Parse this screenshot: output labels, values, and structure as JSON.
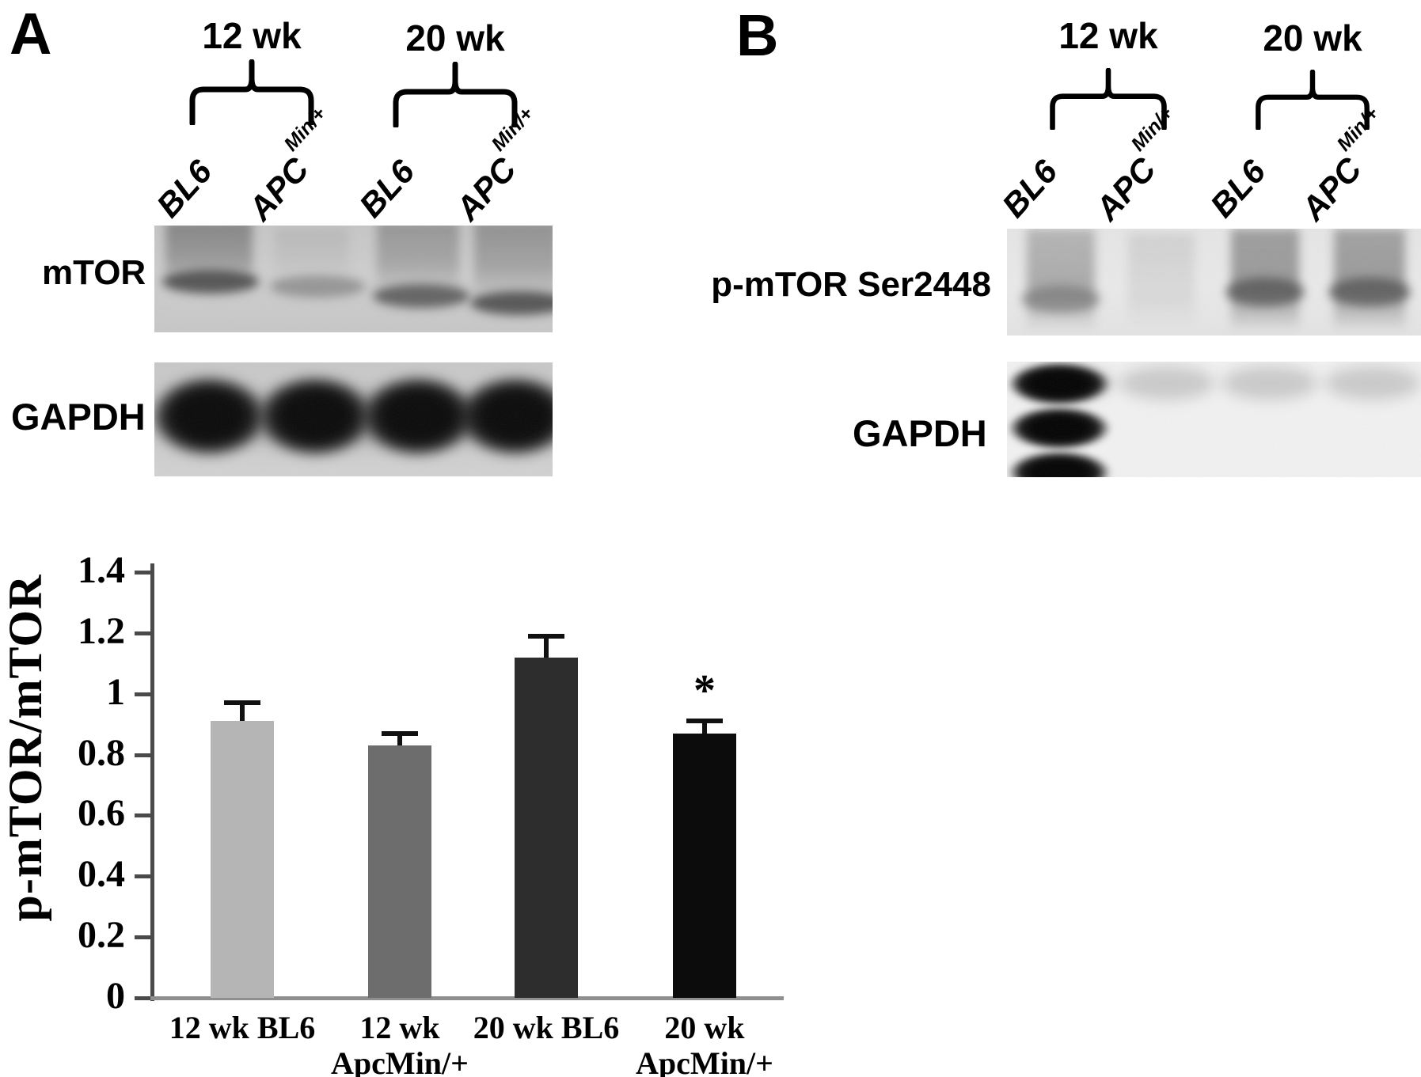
{
  "panel_a": {
    "label": "A",
    "group_labels": [
      "12 wk",
      "20 wk"
    ],
    "lanes": [
      {
        "base": "BL6",
        "sup": ""
      },
      {
        "base": "APC",
        "sup": "Min/+"
      },
      {
        "base": "BL6",
        "sup": ""
      },
      {
        "base": "APC",
        "sup": "Min/+"
      }
    ],
    "rows": [
      {
        "label": "mTOR"
      },
      {
        "label": "GAPDH"
      }
    ]
  },
  "panel_b": {
    "label": "B",
    "group_labels": [
      "12 wk",
      "20 wk"
    ],
    "lanes": [
      {
        "base": "BL6",
        "sup": ""
      },
      {
        "base": "APC",
        "sup": "Min/+"
      },
      {
        "base": "BL6",
        "sup": ""
      },
      {
        "base": "APC",
        "sup": "Min/+"
      }
    ],
    "rows": [
      {
        "label": "p-mTOR Ser2448"
      },
      {
        "label": "GAPDH"
      }
    ]
  },
  "chart_data": {
    "type": "bar",
    "title": "",
    "xlabel": "",
    "ylabel": "p-mTOR/mTOR",
    "categories": [
      "12 wk BL6",
      "12 wk ApcMin/+",
      "20 wk BL6",
      "20 wk ApcMin/+"
    ],
    "category_lines": [
      [
        "12 wk BL6"
      ],
      [
        "12 wk",
        "ApcMin/+"
      ],
      [
        "20 wk BL6"
      ],
      [
        "20 wk",
        "ApcMin/+"
      ]
    ],
    "values": [
      0.91,
      0.83,
      1.12,
      0.87
    ],
    "errors": [
      0.06,
      0.04,
      0.07,
      0.04
    ],
    "bar_colors": [
      "#b5b5b5",
      "#6d6d6d",
      "#2d2d2d",
      "#0c0c0c"
    ],
    "significance": [
      "",
      "",
      "",
      "*"
    ],
    "ylim": [
      0,
      1.4
    ],
    "yticks": [
      0,
      0.2,
      0.4,
      0.6,
      0.8,
      1,
      1.2,
      1.4
    ],
    "ytick_labels": [
      "0",
      "0.2",
      "0.4",
      "0.6",
      "0.8",
      "1",
      "1.2",
      "1.4"
    ],
    "grid": false,
    "legend": "none",
    "axis_color": "#4a4a4a",
    "baseline_color": "#8f8f8f",
    "error_bar_color": "#111111"
  }
}
